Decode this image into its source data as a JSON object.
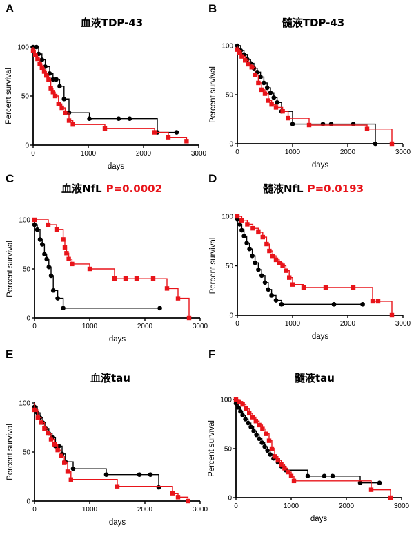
{
  "colors": {
    "black": "#000000",
    "red": "#e8141a"
  },
  "chart_data": [
    {
      "type": "line",
      "panel": "A",
      "title": "血液TDP-43",
      "p_value": "",
      "xlabel": "days",
      "ylabel": "Percent survival",
      "xlim": [
        0,
        3000
      ],
      "ylim": [
        0,
        100
      ],
      "xticks": [
        0,
        1000,
        2000,
        3000
      ],
      "yticks": [
        0,
        50,
        100
      ],
      "series": [
        {
          "color": "#000000",
          "marker": "circle",
          "x": [
            0,
            60,
            100,
            160,
            220,
            300,
            360,
            420,
            480,
            560,
            650,
            1020,
            1550,
            1750,
            2250,
            2600
          ],
          "y": [
            100,
            100,
            93,
            87,
            80,
            73,
            67,
            67,
            60,
            47,
            33,
            27,
            27,
            27,
            13,
            13
          ]
        },
        {
          "color": "#e8141a",
          "marker": "square",
          "x": [
            0,
            40,
            80,
            120,
            160,
            200,
            240,
            280,
            320,
            360,
            400,
            460,
            520,
            580,
            650,
            720,
            1300,
            2200,
            2450,
            2780
          ],
          "y": [
            96,
            92,
            88,
            83,
            79,
            75,
            71,
            67,
            58,
            54,
            50,
            42,
            38,
            33,
            25,
            21,
            17,
            13,
            8,
            4
          ]
        }
      ]
    },
    {
      "type": "line",
      "panel": "B",
      "title": "髓液TDP-43",
      "p_value": "",
      "xlabel": "days",
      "ylabel": "Percent survival",
      "xlim": [
        0,
        3000
      ],
      "ylim": [
        0,
        100
      ],
      "xticks": [
        0,
        1000,
        2000,
        3000
      ],
      "yticks": [
        0,
        50,
        100
      ],
      "series": [
        {
          "color": "#000000",
          "marker": "circle",
          "x": [
            0,
            60,
            120,
            180,
            240,
            300,
            360,
            420,
            480,
            540,
            600,
            660,
            720,
            800,
            1000,
            1550,
            1700,
            2100,
            2500
          ],
          "y": [
            100,
            95,
            91,
            86,
            82,
            77,
            73,
            68,
            62,
            57,
            52,
            47,
            42,
            33,
            20,
            20,
            20,
            20,
            0
          ]
        },
        {
          "color": "#e8141a",
          "marker": "square",
          "x": [
            0,
            40,
            80,
            140,
            200,
            260,
            320,
            380,
            440,
            500,
            560,
            620,
            700,
            820,
            920,
            1300,
            2350,
            2800
          ],
          "y": [
            96,
            93,
            89,
            85,
            81,
            78,
            70,
            62,
            55,
            51,
            44,
            40,
            37,
            33,
            26,
            19,
            15,
            0
          ]
        }
      ]
    },
    {
      "type": "line",
      "panel": "C",
      "title": "血液NfL",
      "p_value": "P=0.0002",
      "xlabel": "days",
      "ylabel": "Percent survival",
      "xlim": [
        0,
        3000
      ],
      "ylim": [
        0,
        100
      ],
      "xticks": [
        0,
        1000,
        2000,
        3000
      ],
      "yticks": [
        0,
        50,
        100
      ],
      "series": [
        {
          "color": "#000000",
          "marker": "circle",
          "x": [
            0,
            50,
            100,
            140,
            180,
            220,
            260,
            300,
            340,
            420,
            520,
            2270
          ],
          "y": [
            95,
            90,
            80,
            75,
            65,
            60,
            52,
            43,
            28,
            20,
            10,
            10
          ]
        },
        {
          "color": "#e8141a",
          "marker": "square",
          "x": [
            0,
            250,
            400,
            520,
            550,
            580,
            620,
            680,
            1000,
            1450,
            1650,
            1850,
            2150,
            2400,
            2600,
            2800
          ],
          "y": [
            100,
            95,
            90,
            80,
            72,
            66,
            60,
            55,
            50,
            40,
            40,
            40,
            40,
            30,
            20,
            0
          ]
        }
      ]
    },
    {
      "type": "line",
      "panel": "D",
      "title": "髓液NfL",
      "p_value": "P=0.0193",
      "xlabel": "days",
      "ylabel": "Percent survival",
      "xlim": [
        0,
        3000
      ],
      "ylim": [
        0,
        100
      ],
      "xticks": [
        0,
        1000,
        2000,
        3000
      ],
      "yticks": [
        0,
        50,
        100
      ],
      "series": [
        {
          "color": "#000000",
          "marker": "circle",
          "x": [
            0,
            40,
            80,
            120,
            170,
            220,
            270,
            320,
            380,
            440,
            500,
            560,
            620,
            700,
            800,
            1750,
            2270
          ],
          "y": [
            97,
            92,
            86,
            80,
            73,
            67,
            60,
            53,
            46,
            40,
            33,
            26,
            20,
            15,
            11,
            11,
            11
          ]
        },
        {
          "color": "#e8141a",
          "marker": "square",
          "x": [
            0,
            80,
            180,
            280,
            380,
            460,
            530,
            580,
            640,
            700,
            760,
            820,
            880,
            940,
            1000,
            1200,
            1600,
            2100,
            2450,
            2550,
            2800
          ],
          "y": [
            100,
            96,
            92,
            88,
            84,
            79,
            72,
            65,
            60,
            56,
            53,
            50,
            45,
            38,
            31,
            28,
            28,
            28,
            14,
            14,
            0
          ]
        }
      ]
    },
    {
      "type": "line",
      "panel": "E",
      "title": "血液tau",
      "p_value": "",
      "xlabel": "days",
      "ylabel": "Percent survival",
      "xlim": [
        0,
        3000
      ],
      "ylim": [
        0,
        100
      ],
      "xticks": [
        0,
        1000,
        2000,
        3000
      ],
      "yticks": [
        0,
        50,
        100
      ],
      "series": [
        {
          "color": "#000000",
          "marker": "circle",
          "x": [
            0,
            50,
            100,
            150,
            200,
            260,
            320,
            380,
            440,
            500,
            560,
            700,
            1300,
            1900,
            2100,
            2250
          ],
          "y": [
            96,
            90,
            85,
            80,
            74,
            69,
            65,
            56,
            56,
            48,
            40,
            33,
            27,
            27,
            27,
            14
          ]
        },
        {
          "color": "#e8141a",
          "marker": "square",
          "x": [
            0,
            60,
            120,
            180,
            240,
            300,
            360,
            420,
            480,
            540,
            600,
            660,
            1500,
            2500,
            2600,
            2780
          ],
          "y": [
            93,
            85,
            80,
            74,
            69,
            63,
            58,
            52,
            46,
            39,
            30,
            22,
            15,
            8,
            4,
            0
          ]
        }
      ]
    },
    {
      "type": "line",
      "panel": "F",
      "title": "髓液tau",
      "p_value": "",
      "xlabel": "days",
      "ylabel": "Percent survival",
      "xlim": [
        0,
        3000
      ],
      "ylim": [
        0,
        100
      ],
      "xticks": [
        0,
        1000,
        2000,
        3000
      ],
      "yticks": [
        0,
        50,
        100
      ],
      "series": [
        {
          "color": "#000000",
          "marker": "circle",
          "x": [
            0,
            40,
            80,
            120,
            170,
            220,
            270,
            320,
            370,
            420,
            470,
            520,
            570,
            620,
            680,
            760,
            820,
            900,
            1300,
            1600,
            1750,
            2250,
            2600
          ],
          "y": [
            96,
            92,
            88,
            84,
            80,
            76,
            72,
            68,
            64,
            60,
            56,
            52,
            48,
            44,
            40,
            36,
            32,
            28,
            22,
            22,
            22,
            15,
            15
          ]
        },
        {
          "color": "#e8141a",
          "marker": "square",
          "x": [
            0,
            60,
            120,
            180,
            240,
            300,
            360,
            420,
            480,
            540,
            600,
            650,
            700,
            760,
            820,
            880,
            940,
            1000,
            1050,
            2450,
            2800
          ],
          "y": [
            100,
            98,
            95,
            91,
            86,
            82,
            78,
            74,
            70,
            65,
            58,
            50,
            42,
            38,
            34,
            30,
            26,
            22,
            17,
            8,
            0
          ]
        }
      ]
    }
  ]
}
